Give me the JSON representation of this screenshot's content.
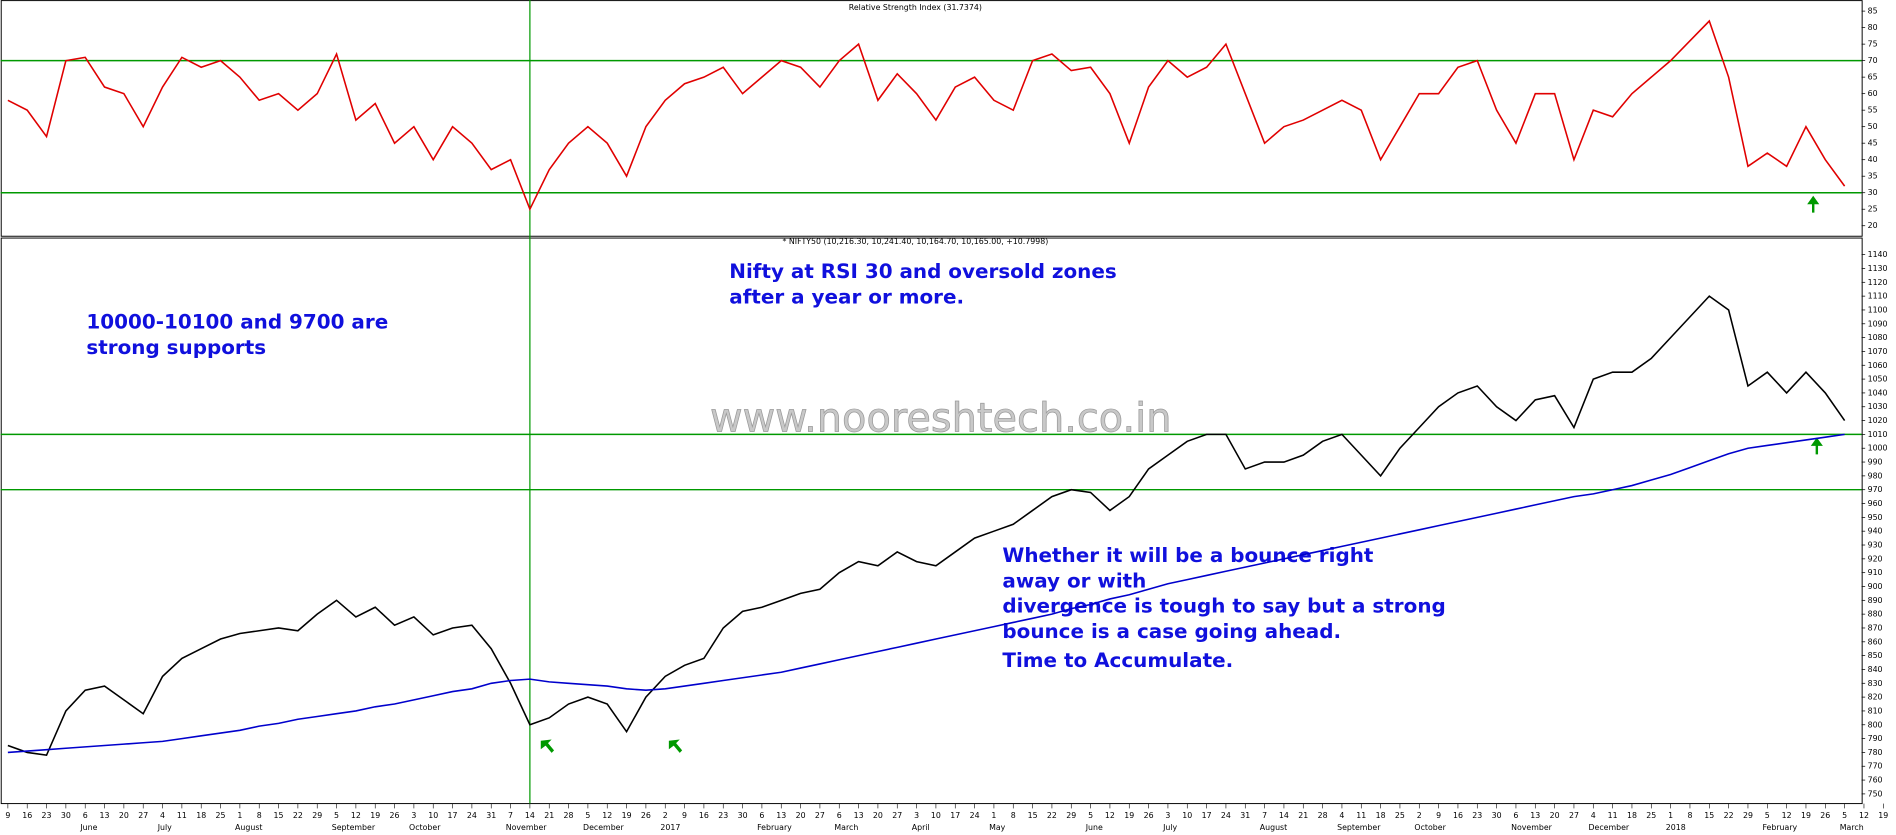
{
  "chart_data": [
    {
      "type": "line",
      "title": "Relative Strength Index (31.7374)",
      "series": [
        {
          "name": "RSI",
          "color": "#e00000",
          "values": [
            58,
            55,
            47,
            70,
            71,
            62,
            60,
            50,
            62,
            71,
            68,
            70,
            65,
            58,
            60,
            55,
            60,
            72,
            52,
            57,
            45,
            50,
            40,
            50,
            45,
            37,
            40,
            25,
            37,
            45,
            50,
            45,
            35,
            50,
            58,
            63,
            65,
            68,
            60,
            65,
            70,
            68,
            62,
            70,
            75,
            58,
            66,
            60,
            52,
            62,
            65,
            58,
            55,
            70,
            72,
            67,
            68,
            60,
            45,
            62,
            70,
            65,
            68,
            75,
            60,
            45,
            50,
            52,
            55,
            58,
            55,
            40,
            50,
            60,
            60,
            68,
            70,
            55,
            45,
            60,
            60,
            40,
            55,
            53,
            60,
            65,
            70,
            76,
            82,
            65,
            38,
            42,
            38,
            50,
            40,
            32,
            null,
            null
          ]
        }
      ],
      "ylim": [
        17,
        88
      ],
      "yticks": [
        20,
        25,
        30,
        35,
        40,
        45,
        50,
        55,
        60,
        65,
        70,
        75,
        80,
        85
      ],
      "levels": [
        30,
        70
      ],
      "level_color": "#009900"
    },
    {
      "type": "line",
      "title": "* NIFTY50 (10,216.30, 10,241.40, 10,164.70, 10,165.00, +10.7998)",
      "categories": [
        9,
        16,
        23,
        30,
        6,
        13,
        20,
        27,
        4,
        11,
        18,
        25,
        1,
        8,
        15,
        22,
        29,
        5,
        12,
        19,
        26,
        3,
        10,
        17,
        24,
        31,
        7,
        14,
        21,
        28,
        5,
        12,
        19,
        26,
        2,
        9,
        16,
        23,
        30,
        6,
        13,
        20,
        27,
        6,
        13,
        20,
        27,
        3,
        10,
        17,
        24,
        1,
        8,
        15,
        22,
        29,
        5,
        12,
        19,
        26,
        3,
        10,
        17,
        24,
        31,
        7,
        14,
        21,
        28,
        4,
        11,
        18,
        25,
        2,
        9,
        16,
        23,
        30,
        6,
        13,
        20,
        27,
        4,
        11,
        18,
        25,
        1,
        8,
        15,
        22,
        29,
        5,
        12,
        19,
        26,
        5,
        12,
        19
      ],
      "month_labels": [
        null,
        null,
        null,
        null,
        "June",
        null,
        null,
        null,
        "July",
        null,
        null,
        null,
        "August",
        null,
        null,
        null,
        null,
        "September",
        null,
        null,
        null,
        "October",
        null,
        null,
        null,
        null,
        "November",
        null,
        null,
        null,
        "December",
        null,
        null,
        null,
        "2017",
        null,
        null,
        null,
        null,
        "February",
        null,
        null,
        null,
        "March",
        null,
        null,
        null,
        "April",
        null,
        null,
        null,
        "May",
        null,
        null,
        null,
        null,
        "June",
        null,
        null,
        null,
        "July",
        null,
        null,
        null,
        null,
        "August",
        null,
        null,
        null,
        "September",
        null,
        null,
        null,
        "October",
        null,
        null,
        null,
        null,
        "November",
        null,
        null,
        null,
        "December",
        null,
        null,
        null,
        "2018",
        null,
        null,
        null,
        null,
        "February",
        null,
        null,
        null,
        "March",
        null,
        null
      ],
      "series": [
        {
          "name": "NIFTY50",
          "color": "#000000",
          "values": [
            785,
            780,
            778,
            810,
            825,
            828,
            818,
            808,
            835,
            848,
            855,
            862,
            866,
            868,
            870,
            868,
            880,
            890,
            878,
            885,
            872,
            878,
            865,
            870,
            872,
            855,
            830,
            800,
            805,
            815,
            820,
            815,
            795,
            820,
            835,
            843,
            848,
            870,
            882,
            885,
            890,
            895,
            898,
            910,
            918,
            915,
            925,
            918,
            915,
            925,
            935,
            940,
            945,
            955,
            965,
            970,
            968,
            955,
            965,
            985,
            995,
            1005,
            1010,
            1010,
            985,
            990,
            990,
            995,
            1005,
            1010,
            995,
            980,
            1000,
            1015,
            1030,
            1040,
            1045,
            1030,
            1020,
            1035,
            1038,
            1015,
            1050,
            1055,
            1055,
            1065,
            1080,
            1095,
            1110,
            1100,
            1045,
            1055,
            1040,
            1055,
            1040,
            1020,
            null,
            null
          ]
        },
        {
          "name": "Moving Average",
          "color": "#0000cc",
          "values": [
            780,
            781,
            782,
            783,
            784,
            785,
            786,
            787,
            788,
            790,
            792,
            794,
            796,
            799,
            801,
            804,
            806,
            808,
            810,
            813,
            815,
            818,
            821,
            824,
            826,
            830,
            832,
            833,
            831,
            830,
            829,
            828,
            826,
            825,
            826,
            828,
            830,
            832,
            834,
            836,
            838,
            841,
            844,
            847,
            850,
            853,
            856,
            859,
            862,
            865,
            868,
            871,
            874,
            877,
            880,
            884,
            887,
            891,
            894,
            898,
            902,
            905,
            908,
            911,
            914,
            917,
            920,
            923,
            926,
            929,
            932,
            935,
            938,
            941,
            944,
            947,
            950,
            953,
            956,
            959,
            962,
            965,
            967,
            970,
            973,
            977,
            981,
            986,
            991,
            996,
            1000,
            1002,
            1004,
            1006,
            1008,
            1010,
            null,
            null
          ]
        }
      ],
      "ylim": [
        743,
        1152
      ],
      "yticks": [
        750,
        760,
        770,
        780,
        790,
        800,
        810,
        820,
        830,
        840,
        850,
        860,
        870,
        880,
        890,
        900,
        910,
        920,
        930,
        940,
        950,
        960,
        970,
        980,
        990,
        1000,
        1010,
        1020,
        1030,
        1040,
        1050,
        1060,
        1070,
        1080,
        1090,
        1100,
        1110,
        1120,
        1130,
        1140
      ],
      "levels": [
        1010,
        970
      ],
      "level_color": "#009900",
      "annotations": [
        "10000-10100 and 9700 are",
        "strong supports",
        "Nifty at RSI 30 and oversold zones",
        "after a year or more.",
        "Whether it will be a bounce right",
        "away or with",
        "divergence is tough to say but a strong",
        "bounce is a case going ahead.",
        "Time to Accumulate."
      ],
      "watermark": "www.nooreshtech.co.in"
    }
  ]
}
